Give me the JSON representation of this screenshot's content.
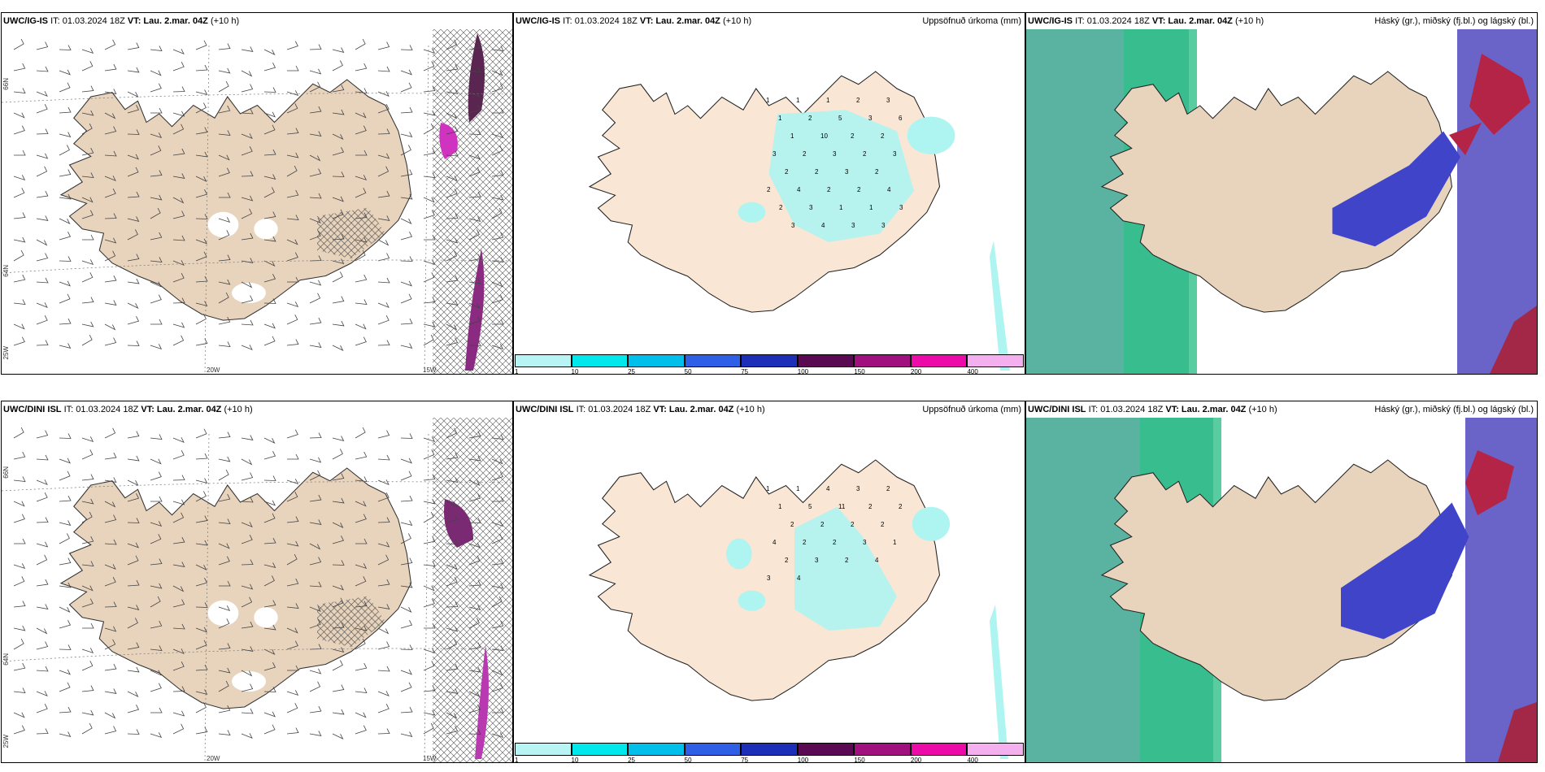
{
  "panels": [
    {
      "model": "UWC/IG-IS",
      "it": "IT: 01.03.2024 18Z",
      "vt_label": "VT:",
      "vt": "Lau. 2.mar. 04Z",
      "lead": "(+10 h)",
      "right": "",
      "kind": "wind"
    },
    {
      "model": "UWC/IG-IS",
      "it": "IT: 01.03.2024 18Z",
      "vt_label": "VT:",
      "vt": "Lau. 2.mar. 04Z",
      "lead": "(+10 h)",
      "right": "Uppsöfnuð úrkoma (mm)",
      "kind": "precip"
    },
    {
      "model": "UWC/IG-IS",
      "it": "IT: 01.03.2024 18Z",
      "vt_label": "VT:",
      "vt": "Lau. 2.mar. 04Z",
      "lead": "(+10 h)",
      "right": "Háský (gr.), miðský (fj.bl.) og lágský (bl.)",
      "kind": "cloud"
    },
    {
      "model": "UWC/DINI ISL",
      "it": "IT: 01.03.2024 18Z",
      "vt_label": "VT:",
      "vt": "Lau. 2.mar. 04Z",
      "lead": "(+10 h)",
      "right": "",
      "kind": "wind"
    },
    {
      "model": "UWC/DINI ISL",
      "it": "IT: 01.03.2024 18Z",
      "vt_label": "VT:",
      "vt": "Lau. 2.mar. 04Z",
      "lead": "(+10 h)",
      "right": "Uppsöfnuð úrkoma (mm)",
      "kind": "precip"
    },
    {
      "model": "UWC/DINI ISL",
      "it": "IT: 01.03.2024 18Z",
      "vt_label": "VT:",
      "vt": "Lau. 2.mar. 04Z",
      "lead": "(+10 h)",
      "right": "Háský (gr.), miðský (fj.bl.) og lágský (bl.)",
      "kind": "cloud"
    }
  ],
  "grid_labels": {
    "lon_20w": "20W",
    "lon_15w": "15W",
    "lat_66n": "66N",
    "lat_64n": "64N",
    "lat_25w": "25W"
  },
  "colorbar": {
    "ticks": [
      "1",
      "10",
      "25",
      "50",
      "75",
      "100",
      "150",
      "200",
      "400"
    ],
    "colors": [
      "#b8f4f4",
      "#00e8ec",
      "#00bfea",
      "#2f5fe6",
      "#1d2fb8",
      "#5a0a52",
      "#a0107e",
      "#ec0aa8",
      "#f4b0ee"
    ]
  },
  "precip_values_top": [
    "1",
    "1",
    "1",
    "2",
    "3",
    "1",
    "2",
    "5",
    "3",
    "6",
    "1",
    "10",
    "2",
    "2",
    "3",
    "2",
    "3",
    "2",
    "3",
    "2",
    "2",
    "3",
    "2",
    "2",
    "4",
    "2",
    "2",
    "4",
    "2",
    "3",
    "1",
    "1",
    "3",
    "3",
    "4",
    "3",
    "3"
  ],
  "precip_values_bottom": [
    "1",
    "1",
    "4",
    "3",
    "2",
    "1",
    "5",
    "11",
    "2",
    "2",
    "2",
    "2",
    "2",
    "2",
    "4",
    "2",
    "2",
    "3",
    "1",
    "2",
    "3",
    "2",
    "4",
    "3",
    "4"
  ],
  "colors": {
    "land": "#f9e6d4",
    "land_wind": "#e8d3bc",
    "precip": "#aef4f1",
    "cloud_high": "#2e9f7c",
    "cloud_mid": "#3f44c8",
    "cloud_low": "#b42446"
  }
}
